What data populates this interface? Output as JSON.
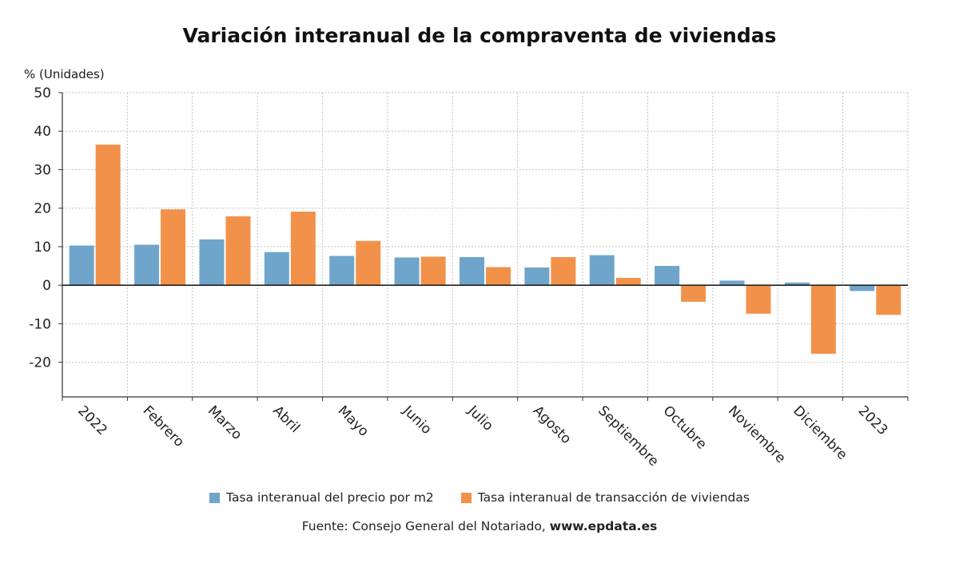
{
  "chart_data": {
    "type": "bar",
    "title": "Variación interanual de la compraventa de viviendas",
    "ylabel": "% (Unidades)",
    "ylim": [
      -29,
      50
    ],
    "yticks": [
      -20,
      -10,
      0,
      10,
      20,
      30,
      40,
      50
    ],
    "grid": true,
    "legend_position": "bottom",
    "categories": [
      "2022",
      "Febrero",
      "Marzo",
      "Abril",
      "Mayo",
      "Junio",
      "Julio",
      "Agosto",
      "Septiembre",
      "Octubre",
      "Noviembre",
      "Diciembre",
      "2023"
    ],
    "series": [
      {
        "name": "Tasa interanual del precio por m2",
        "color": "#6fa5ca",
        "values": [
          10.3,
          10.5,
          11.9,
          8.6,
          7.6,
          7.2,
          7.3,
          4.6,
          7.8,
          5.0,
          1.2,
          0.7,
          -1.5
        ]
      },
      {
        "name": "Tasa interanual de transacción de viviendas",
        "color": "#f2924a",
        "values": [
          36.5,
          19.7,
          17.9,
          19.1,
          11.5,
          7.4,
          4.7,
          7.3,
          1.9,
          -4.3,
          -7.4,
          -17.8,
          -7.7
        ]
      }
    ]
  },
  "source": {
    "prefix": "Fuente: Consejo General del Notariado, ",
    "site": "www.epdata.es"
  }
}
